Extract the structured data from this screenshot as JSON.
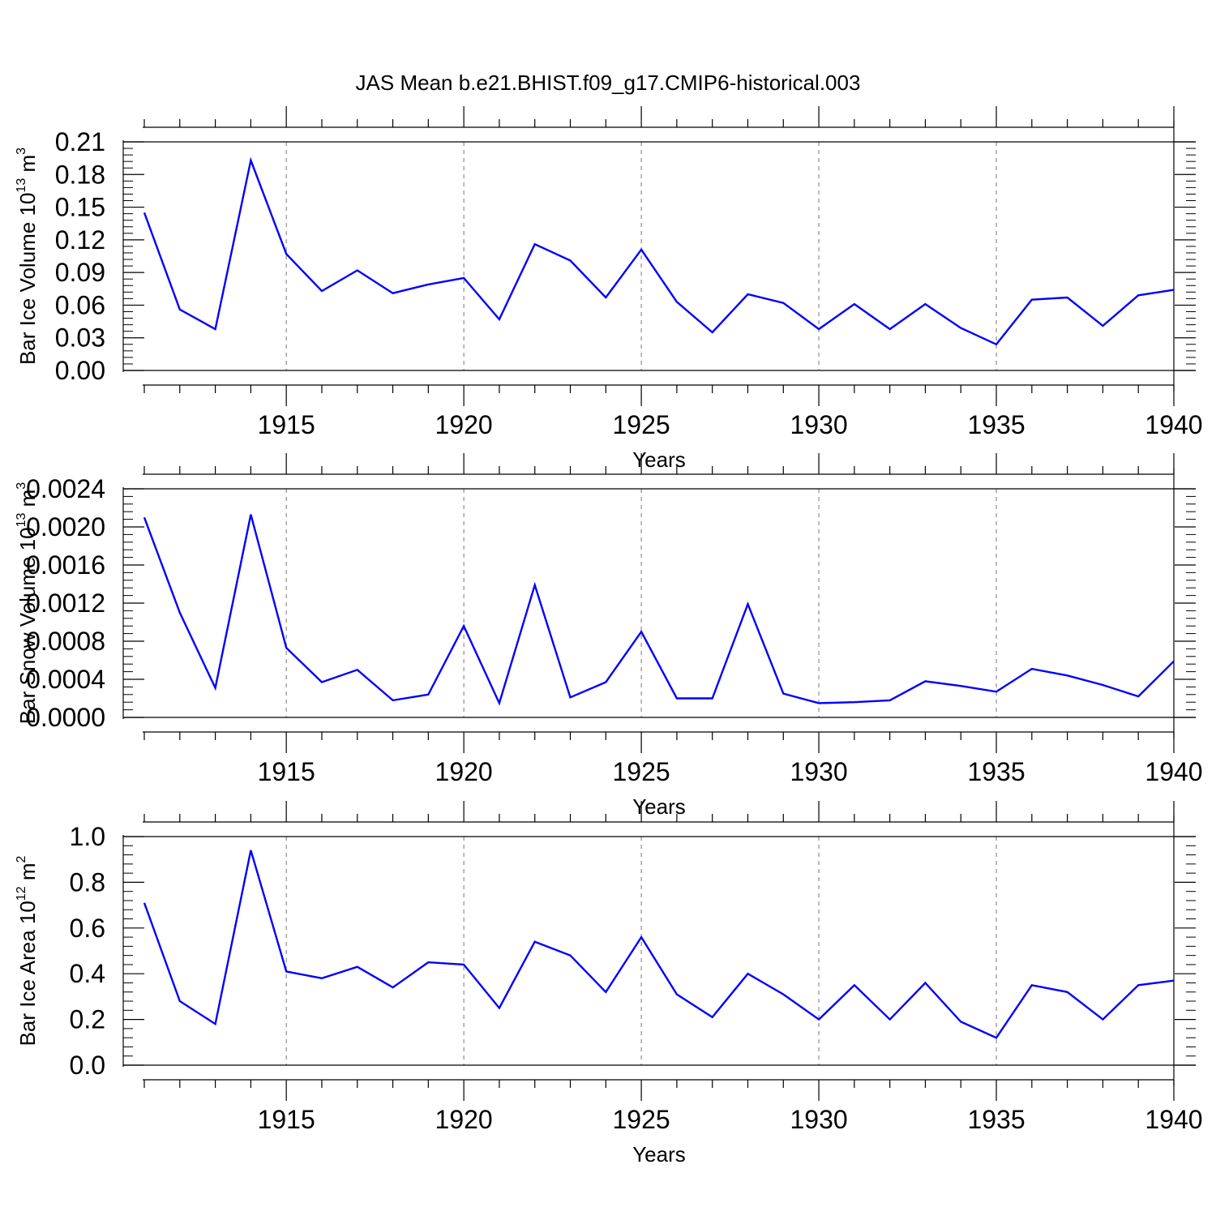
{
  "title": "JAS Mean b.e21.BHIST.f09_g17.CMIP6-historical.003",
  "chart_data": [
    {
      "type": "line",
      "xlabel": "Years",
      "ylabel": {
        "pre": "Bar Ice Volume 10",
        "exp1": "13",
        "mid": " m",
        "exp2": "3"
      },
      "xlim": [
        1911,
        1940
      ],
      "ylim": [
        0,
        0.21
      ],
      "xticks": [
        1915,
        1920,
        1925,
        1930,
        1935,
        1940
      ],
      "yticks": [
        "0.00",
        "0.03",
        "0.06",
        "0.09",
        "0.12",
        "0.15",
        "0.18",
        "0.21"
      ],
      "grid": "vertical dashed at major x ticks",
      "color": "#0000ff",
      "x": [
        1911,
        1912,
        1913,
        1914,
        1915,
        1916,
        1917,
        1918,
        1919,
        1920,
        1921,
        1922,
        1923,
        1924,
        1925,
        1926,
        1927,
        1928,
        1929,
        1930,
        1931,
        1932,
        1933,
        1934,
        1935,
        1936,
        1937,
        1938,
        1939,
        1940
      ],
      "values": [
        0.145,
        0.056,
        0.038,
        0.193,
        0.107,
        0.073,
        0.092,
        0.071,
        0.079,
        0.085,
        0.047,
        0.116,
        0.101,
        0.067,
        0.111,
        0.063,
        0.035,
        0.07,
        0.062,
        0.038,
        0.061,
        0.038,
        0.061,
        0.039,
        0.024,
        0.065,
        0.067,
        0.041,
        0.069,
        0.074
      ]
    },
    {
      "type": "line",
      "xlabel": "Years",
      "ylabel": {
        "pre": "Bar Snow Volume 10",
        "exp1": "13",
        "mid": " m",
        "exp2": "3"
      },
      "xlim": [
        1911,
        1940
      ],
      "ylim": [
        0,
        0.0024
      ],
      "xticks": [
        1915,
        1920,
        1925,
        1930,
        1935,
        1940
      ],
      "yticks": [
        "0.0000",
        "0.0004",
        "0.0008",
        "0.0012",
        "0.0016",
        "0.0020",
        "0.0024"
      ],
      "grid": "vertical dashed at major x ticks",
      "color": "#0000ff",
      "x": [
        1911,
        1912,
        1913,
        1914,
        1915,
        1916,
        1917,
        1918,
        1919,
        1920,
        1921,
        1922,
        1923,
        1924,
        1925,
        1926,
        1927,
        1928,
        1929,
        1930,
        1931,
        1932,
        1933,
        1934,
        1935,
        1936,
        1937,
        1938,
        1939,
        1940
      ],
      "values": [
        0.0021,
        0.0011,
        0.00031,
        0.00213,
        0.00073,
        0.00037,
        0.0005,
        0.00018,
        0.00024,
        0.00096,
        0.00015,
        0.00139,
        0.00021,
        0.00037,
        0.0009,
        0.0002,
        0.0002,
        0.00119,
        0.00025,
        0.00015,
        0.00016,
        0.00018,
        0.00038,
        0.00033,
        0.00027,
        0.00051,
        0.00044,
        0.00034,
        0.00022,
        0.00059
      ]
    },
    {
      "type": "line",
      "xlabel": "Years",
      "ylabel": {
        "pre": "Bar Ice Area 10",
        "exp1": "12",
        "mid": " m",
        "exp2": "2"
      },
      "xlim": [
        1911,
        1940
      ],
      "ylim": [
        0,
        1.0
      ],
      "xticks": [
        1915,
        1920,
        1925,
        1930,
        1935,
        1940
      ],
      "yticks": [
        "0.0",
        "0.2",
        "0.4",
        "0.6",
        "0.8",
        "1.0"
      ],
      "grid": "vertical dashed at major x ticks",
      "color": "#0000ff",
      "x": [
        1911,
        1912,
        1913,
        1914,
        1915,
        1916,
        1917,
        1918,
        1919,
        1920,
        1921,
        1922,
        1923,
        1924,
        1925,
        1926,
        1927,
        1928,
        1929,
        1930,
        1931,
        1932,
        1933,
        1934,
        1935,
        1936,
        1937,
        1938,
        1939,
        1940
      ],
      "values": [
        0.71,
        0.28,
        0.18,
        0.94,
        0.41,
        0.38,
        0.43,
        0.34,
        0.45,
        0.44,
        0.25,
        0.54,
        0.48,
        0.32,
        0.56,
        0.31,
        0.21,
        0.4,
        0.31,
        0.2,
        0.35,
        0.2,
        0.36,
        0.19,
        0.12,
        0.35,
        0.32,
        0.2,
        0.35,
        0.37
      ]
    }
  ]
}
